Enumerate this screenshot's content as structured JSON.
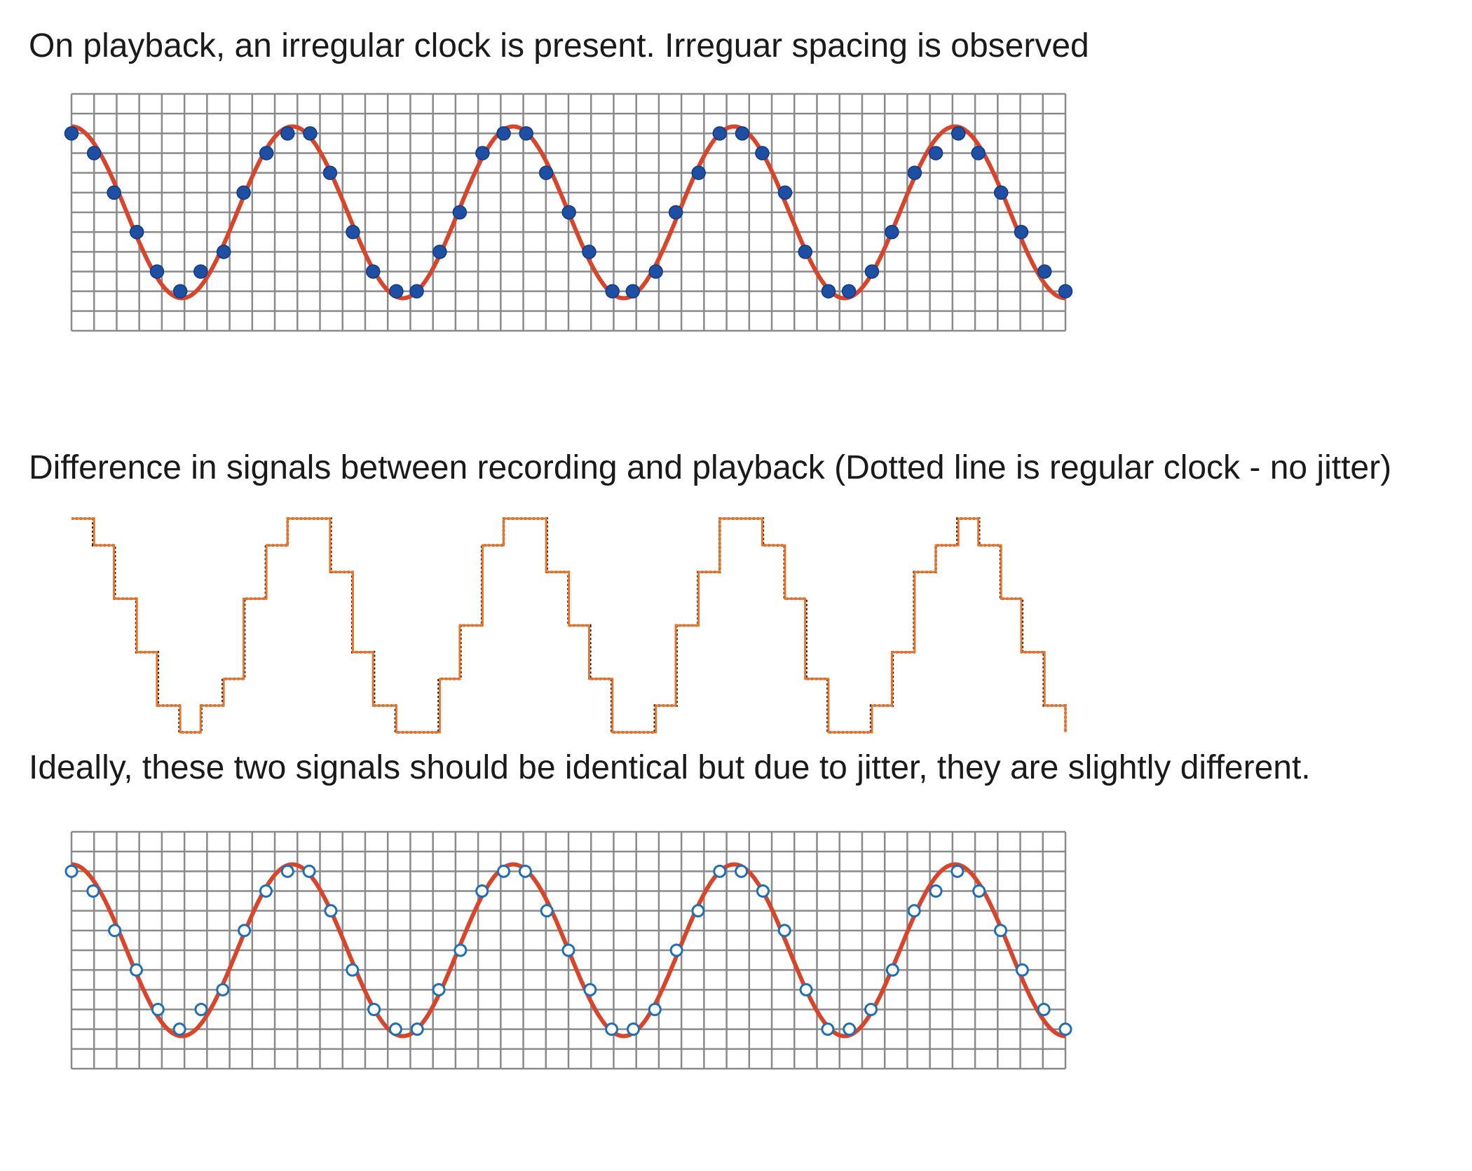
{
  "captions": {
    "top": "On playback, an irregular clock is present. Irreguar spacing is observed",
    "middle": "Difference in signals between recording and playback (Dotted line is regular clock - no jitter)",
    "bottom": "Ideally, these two signals should be identical but due to jitter, they are slightly different."
  },
  "colors": {
    "sine": "#d9452b",
    "grid": "#8a8a8a",
    "sample_filled": "#1f4fa3",
    "sample_hollow": "#1f6fb8",
    "playback_step": "#e8742a",
    "regular_step": "#111111"
  },
  "signal": {
    "cycles": 4.5,
    "grid_columns": 44,
    "grid_rows": 12,
    "sample_count": 47
  }
}
